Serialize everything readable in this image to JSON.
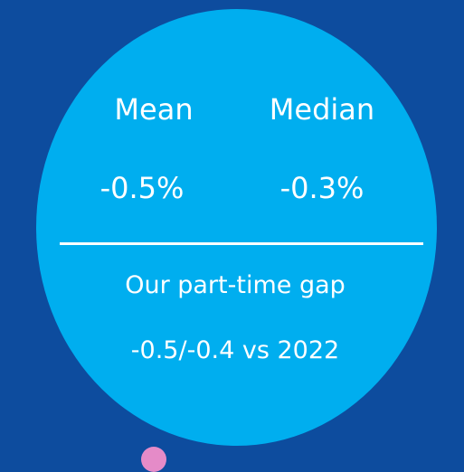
{
  "stats": [
    {
      "label": "Mean",
      "value": "-0.5%"
    },
    {
      "label": "Median",
      "value": "-0.3%"
    }
  ],
  "caption": "Our part-time gap",
  "comparison": "-0.5/-0.4 vs 2022"
}
